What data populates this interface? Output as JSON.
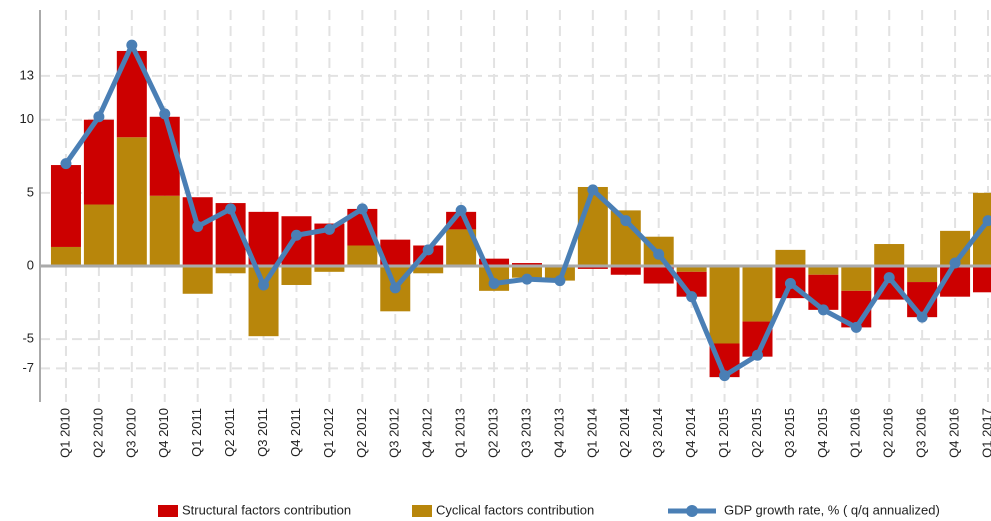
{
  "chart_data": {
    "type": "bar",
    "categories": [
      "Q1 2010",
      "Q2 2010",
      "Q3 2010",
      "Q4 2010",
      "Q1 2011",
      "Q2 2011",
      "Q3 2011",
      "Q4 2011",
      "Q1 2012",
      "Q2 2012",
      "Q3 2012",
      "Q4 2012",
      "Q1 2013",
      "Q2 2013",
      "Q3 2013",
      "Q4 2013",
      "Q1 2014",
      "Q2 2014",
      "Q3 2014",
      "Q4 2014",
      "Q1 2015",
      "Q2 2015",
      "Q3 2015",
      "Q4 2015",
      "Q1 2016",
      "Q2 2016",
      "Q3 2016",
      "Q4 2016",
      "Q1 2017"
    ],
    "series": [
      {
        "name": "Structural factors contribution",
        "type": "bar",
        "color": "#cc0000",
        "values": [
          5.6,
          5.8,
          5.9,
          5.4,
          4.7,
          4.3,
          3.7,
          3.4,
          2.9,
          2.5,
          1.8,
          1.4,
          1.2,
          0.5,
          0.2,
          0.05,
          -0.2,
          -0.6,
          -1.2,
          -1.7,
          -2.3,
          -2.4,
          -2.2,
          -2.4,
          -2.5,
          -2.3,
          -2.4,
          -2.1,
          -1.8
        ]
      },
      {
        "name": "Cyclical factors contribution",
        "type": "bar",
        "color": "#b8860b",
        "values": [
          1.3,
          4.2,
          8.8,
          4.8,
          -1.9,
          -0.5,
          -4.8,
          -1.3,
          -0.4,
          1.4,
          -3.1,
          -0.5,
          2.5,
          -1.7,
          -0.8,
          -1.0,
          5.4,
          3.8,
          2.0,
          -0.4,
          -5.3,
          -3.8,
          1.1,
          -0.6,
          -1.7,
          1.5,
          -1.1,
          2.4,
          5.0
        ]
      },
      {
        "name": "GDP growth rate, % ( q/q annualized)",
        "type": "line",
        "color": "#4a7fb5",
        "values": [
          7.0,
          10.2,
          15.1,
          10.4,
          2.7,
          3.9,
          -1.3,
          2.1,
          2.5,
          3.9,
          -1.5,
          1.1,
          3.8,
          -1.2,
          -0.9,
          -1.0,
          5.2,
          3.1,
          0.8,
          -2.1,
          -7.5,
          -6.1,
          -1.2,
          -3.0,
          -4.2,
          -0.8,
          -3.5,
          0.2,
          3.1
        ]
      }
    ],
    "ylim": [
      -9.3,
      17.5
    ],
    "yticks": [
      -7,
      -5,
      0,
      5,
      10,
      13
    ],
    "grid": true
  }
}
